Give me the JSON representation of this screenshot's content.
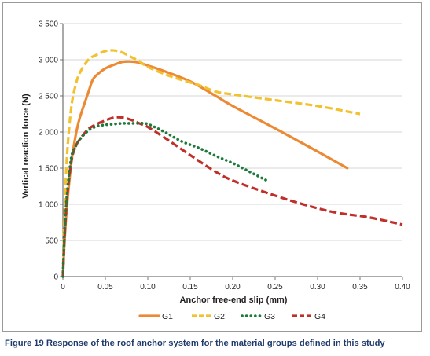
{
  "chart_data": {
    "type": "line",
    "title": "",
    "xlabel": "Anchor free-end slip (mm)",
    "ylabel": "Vertical reaction force (N)",
    "xlim": [
      0,
      0.4
    ],
    "ylim": [
      0,
      3500
    ],
    "xticks": [
      "0",
      "0.05",
      "0.10",
      "0.15",
      "0.20",
      "0.25",
      "0.30",
      "0.35",
      "0.40"
    ],
    "yticks": [
      "0",
      "500",
      "1 000",
      "1 500",
      "2 000",
      "2 500",
      "3 000",
      "3 500"
    ],
    "grid": "horizontal",
    "legend_position": "bottom",
    "series": [
      {
        "name": "G1",
        "color": "#ec8a34",
        "style": "solid",
        "points": [
          [
            0,
            0
          ],
          [
            0.002,
            500
          ],
          [
            0.005,
            1000
          ],
          [
            0.01,
            1580
          ],
          [
            0.015,
            1950
          ],
          [
            0.02,
            2200
          ],
          [
            0.03,
            2550
          ],
          [
            0.035,
            2720
          ],
          [
            0.04,
            2790
          ],
          [
            0.05,
            2880
          ],
          [
            0.06,
            2930
          ],
          [
            0.07,
            2970
          ],
          [
            0.08,
            2975
          ],
          [
            0.09,
            2960
          ],
          [
            0.1,
            2920
          ],
          [
            0.12,
            2840
          ],
          [
            0.15,
            2700
          ],
          [
            0.18,
            2500
          ],
          [
            0.2,
            2360
          ],
          [
            0.25,
            2050
          ],
          [
            0.3,
            1730
          ],
          [
            0.335,
            1500
          ]
        ]
      },
      {
        "name": "G2",
        "color": "#f2c12e",
        "style": "dash",
        "points": [
          [
            0,
            0
          ],
          [
            0.002,
            900
          ],
          [
            0.005,
            1700
          ],
          [
            0.01,
            2350
          ],
          [
            0.015,
            2650
          ],
          [
            0.02,
            2820
          ],
          [
            0.03,
            3000
          ],
          [
            0.04,
            3070
          ],
          [
            0.05,
            3120
          ],
          [
            0.06,
            3130
          ],
          [
            0.07,
            3100
          ],
          [
            0.08,
            3040
          ],
          [
            0.09,
            2980
          ],
          [
            0.1,
            2900
          ],
          [
            0.12,
            2800
          ],
          [
            0.14,
            2720
          ],
          [
            0.16,
            2650
          ],
          [
            0.18,
            2560
          ],
          [
            0.2,
            2520
          ],
          [
            0.25,
            2440
          ],
          [
            0.3,
            2360
          ],
          [
            0.35,
            2250
          ]
        ]
      },
      {
        "name": "G3",
        "color": "#1d7a3a",
        "style": "dot",
        "points": [
          [
            0,
            0
          ],
          [
            0.002,
            600
          ],
          [
            0.005,
            1150
          ],
          [
            0.01,
            1650
          ],
          [
            0.015,
            1800
          ],
          [
            0.02,
            1900
          ],
          [
            0.03,
            2020
          ],
          [
            0.04,
            2080
          ],
          [
            0.05,
            2100
          ],
          [
            0.06,
            2110
          ],
          [
            0.07,
            2120
          ],
          [
            0.08,
            2120
          ],
          [
            0.09,
            2120
          ],
          [
            0.1,
            2110
          ],
          [
            0.12,
            2000
          ],
          [
            0.14,
            1870
          ],
          [
            0.16,
            1780
          ],
          [
            0.18,
            1670
          ],
          [
            0.2,
            1570
          ],
          [
            0.22,
            1450
          ],
          [
            0.24,
            1330
          ]
        ]
      },
      {
        "name": "G4",
        "color": "#c0302a",
        "style": "dash",
        "points": [
          [
            0,
            0
          ],
          [
            0.002,
            550
          ],
          [
            0.005,
            1100
          ],
          [
            0.01,
            1600
          ],
          [
            0.015,
            1800
          ],
          [
            0.02,
            1900
          ],
          [
            0.03,
            2040
          ],
          [
            0.04,
            2110
          ],
          [
            0.05,
            2160
          ],
          [
            0.06,
            2200
          ],
          [
            0.07,
            2200
          ],
          [
            0.08,
            2170
          ],
          [
            0.09,
            2120
          ],
          [
            0.1,
            2070
          ],
          [
            0.12,
            1920
          ],
          [
            0.15,
            1680
          ],
          [
            0.18,
            1450
          ],
          [
            0.2,
            1330
          ],
          [
            0.24,
            1160
          ],
          [
            0.28,
            1010
          ],
          [
            0.32,
            890
          ],
          [
            0.36,
            820
          ],
          [
            0.4,
            720
          ]
        ]
      }
    ]
  },
  "caption": {
    "figure_label": "Figure 19",
    "text": "Response of the roof anchor system for the material groups defined in this study"
  }
}
